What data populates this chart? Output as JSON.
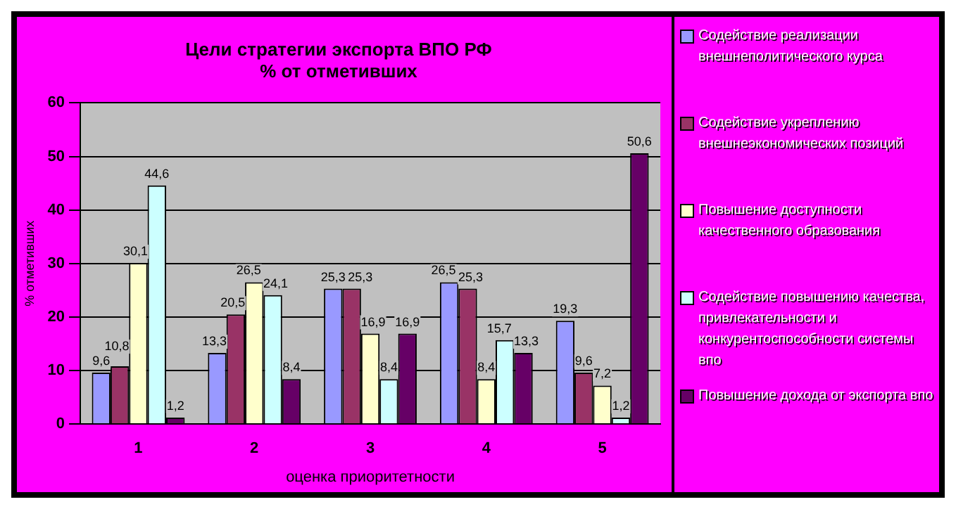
{
  "chart_data": {
    "type": "bar",
    "title": "Цели стратегии экспорта ВПО РФ",
    "subtitle": "% от отметивших",
    "xlabel": "оценка приоритетности",
    "ylabel": "% отметивших",
    "categories": [
      "1",
      "2",
      "3",
      "4",
      "5"
    ],
    "series": [
      {
        "name": "Содействие реализации внешнеполитического курса",
        "color": "#9999ff",
        "values": [
          9.6,
          13.3,
          25.3,
          26.5,
          19.3
        ],
        "value_labels": [
          "9,6",
          "13,3",
          "25,3",
          "26,5",
          "19,3"
        ]
      },
      {
        "name": "Содействие укреплению внешнеэкономических позиций",
        "color": "#993366",
        "values": [
          10.8,
          20.5,
          25.3,
          25.3,
          9.6
        ],
        "value_labels": [
          "10,8",
          "20,5",
          "25,3",
          "25,3",
          "9,6"
        ]
      },
      {
        "name": "Повышение доступности качественного образования",
        "color": "#ffffcc",
        "values": [
          30.1,
          26.5,
          16.9,
          8.4,
          7.2
        ],
        "value_labels": [
          "30,1",
          "26,5",
          "16,9",
          "8,4",
          "7,2"
        ]
      },
      {
        "name": "Содействие повышению качества, привлекательности и конкурентоспособности системы впо",
        "color": "#ccffff",
        "values": [
          44.6,
          24.1,
          8.4,
          15.7,
          1.2
        ],
        "value_labels": [
          "44,6",
          "24,1",
          "8,4",
          "15,7",
          "1,2"
        ]
      },
      {
        "name": "Повышение дохода от экспорта впо",
        "color": "#660066",
        "values": [
          1.2,
          8.4,
          16.9,
          13.3,
          50.6
        ],
        "value_labels": [
          "1,2",
          "8,4",
          "16,9",
          "13,3",
          "50,6"
        ]
      }
    ],
    "ylim": [
      0,
      60
    ],
    "yticks": [
      0,
      10,
      20,
      30,
      40,
      50,
      60
    ],
    "grid": "y",
    "legend": "right"
  }
}
